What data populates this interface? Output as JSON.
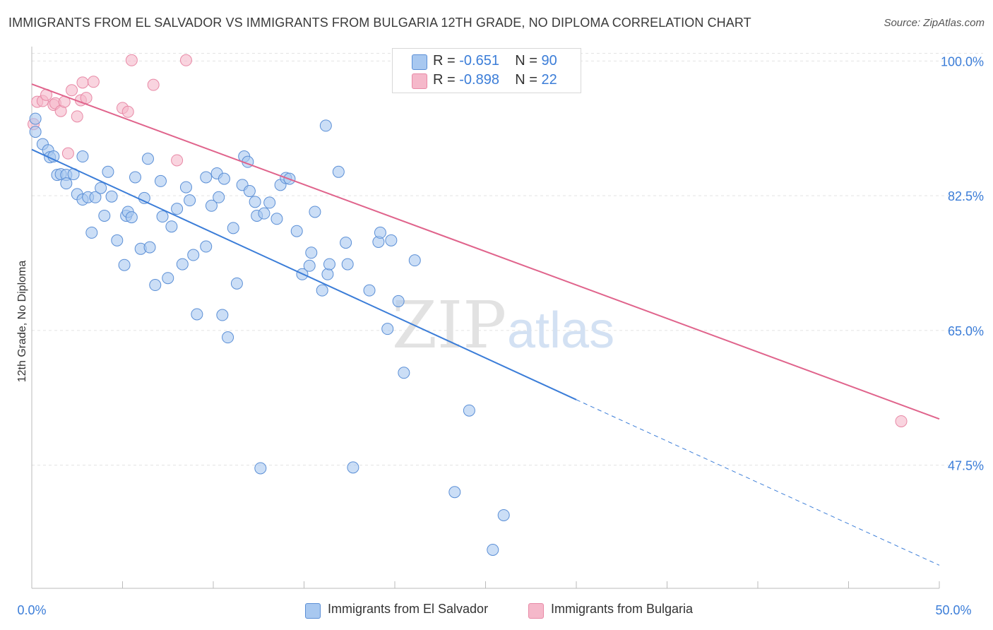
{
  "header": {
    "title": "IMMIGRANTS FROM EL SALVADOR VS IMMIGRANTS FROM BULGARIA 12TH GRADE, NO DIPLOMA CORRELATION CHART",
    "source": "Source: ZipAtlas.com"
  },
  "watermark": {
    "zip": "ZIP",
    "atlas": "atlas"
  },
  "legend": {
    "rows": [
      {
        "r_label": "R =",
        "r_value": "-0.651",
        "n_label": "N =",
        "n_value": "90",
        "color": "#a8c8f0"
      },
      {
        "r_label": "R =",
        "r_value": "-0.898",
        "n_label": "N =",
        "n_value": "22",
        "color": "#f5b8ca"
      }
    ]
  },
  "bottom_legend": {
    "el_salvador": "Immigrants from El Salvador",
    "bulgaria": "Immigrants from Bulgaria"
  },
  "colors": {
    "blue_fill": "#a8c8f0",
    "blue_stroke": "#5b8fd6",
    "blue_line": "#3b7dd8",
    "pink_fill": "#f5b8ca",
    "pink_stroke": "#e889a6",
    "pink_line": "#e0648c",
    "axis_label": "#3b7dd8",
    "grid": "#e3e3e3"
  },
  "chart_data": {
    "type": "scatter",
    "title": "IMMIGRANTS FROM EL SALVADOR VS IMMIGRANTS FROM BULGARIA 12TH GRADE, NO DIPLOMA CORRELATION CHART",
    "xlabel": "",
    "ylabel": "12th Grade, No Diploma",
    "xlim": [
      0,
      50
    ],
    "ylim": [
      31.5,
      101.5
    ],
    "x_tick_labels": [
      "0.0%",
      "50.0%"
    ],
    "y_ticks": [
      47.5,
      65.0,
      82.5,
      100.0
    ],
    "y_tick_labels": [
      "47.5%",
      "65.0%",
      "82.5%",
      "100.0%"
    ],
    "grid": true,
    "legend_position": "top-center",
    "series": [
      {
        "name": "Immigrants from El Salvador",
        "color": "#a8c8f0",
        "r": -0.651,
        "n": 90,
        "trend": {
          "x0": 0,
          "y0": 88.5,
          "x1": 30,
          "y1": 56.0,
          "dash_x1": 50,
          "dash_y1": 34.5
        },
        "points": [
          [
            0.2,
            92.5
          ],
          [
            0.2,
            90.8
          ],
          [
            0.6,
            89.2
          ],
          [
            0.9,
            88.4
          ],
          [
            1.0,
            87.5
          ],
          [
            1.2,
            87.6
          ],
          [
            1.4,
            85.2
          ],
          [
            1.6,
            85.3
          ],
          [
            1.9,
            85.2
          ],
          [
            2.3,
            85.3
          ],
          [
            1.9,
            84.1
          ],
          [
            2.5,
            82.7
          ],
          [
            2.8,
            82.0
          ],
          [
            3.1,
            82.3
          ],
          [
            3.5,
            82.3
          ],
          [
            2.8,
            87.6
          ],
          [
            3.8,
            83.5
          ],
          [
            4.2,
            85.6
          ],
          [
            4.4,
            82.4
          ],
          [
            4.0,
            79.9
          ],
          [
            3.3,
            77.7
          ],
          [
            4.7,
            76.7
          ],
          [
            5.2,
            79.9
          ],
          [
            5.3,
            80.4
          ],
          [
            5.5,
            79.7
          ],
          [
            5.7,
            84.9
          ],
          [
            6.2,
            82.2
          ],
          [
            6.4,
            87.3
          ],
          [
            6.0,
            75.6
          ],
          [
            6.5,
            75.8
          ],
          [
            5.1,
            73.5
          ],
          [
            6.8,
            70.9
          ],
          [
            7.2,
            79.8
          ],
          [
            7.1,
            84.4
          ],
          [
            7.5,
            71.8
          ],
          [
            7.7,
            78.5
          ],
          [
            8.0,
            80.8
          ],
          [
            8.3,
            73.6
          ],
          [
            8.5,
            83.6
          ],
          [
            8.7,
            81.9
          ],
          [
            8.9,
            74.8
          ],
          [
            9.6,
            75.9
          ],
          [
            9.1,
            67.1
          ],
          [
            9.6,
            84.9
          ],
          [
            9.9,
            81.2
          ],
          [
            10.2,
            85.4
          ],
          [
            10.3,
            82.3
          ],
          [
            10.6,
            84.7
          ],
          [
            10.5,
            67.0
          ],
          [
            10.8,
            64.1
          ],
          [
            11.1,
            78.3
          ],
          [
            11.3,
            71.1
          ],
          [
            11.6,
            83.9
          ],
          [
            11.7,
            87.6
          ],
          [
            11.9,
            86.9
          ],
          [
            12.0,
            83.1
          ],
          [
            12.3,
            81.7
          ],
          [
            12.4,
            79.9
          ],
          [
            12.6,
            47.1
          ],
          [
            12.8,
            80.2
          ],
          [
            13.1,
            81.6
          ],
          [
            13.5,
            79.5
          ],
          [
            13.7,
            83.9
          ],
          [
            14.0,
            84.8
          ],
          [
            14.2,
            84.7
          ],
          [
            14.6,
            77.9
          ],
          [
            14.9,
            72.3
          ],
          [
            15.3,
            73.4
          ],
          [
            15.4,
            75.1
          ],
          [
            15.6,
            80.4
          ],
          [
            16.2,
            91.6
          ],
          [
            16.0,
            70.2
          ],
          [
            16.3,
            72.3
          ],
          [
            16.4,
            73.6
          ],
          [
            16.9,
            85.6
          ],
          [
            17.3,
            76.4
          ],
          [
            17.4,
            73.6
          ],
          [
            17.7,
            47.2
          ],
          [
            18.6,
            70.2
          ],
          [
            19.1,
            76.5
          ],
          [
            19.2,
            77.7
          ],
          [
            19.8,
            76.7
          ],
          [
            19.6,
            65.2
          ],
          [
            20.2,
            68.8
          ],
          [
            20.5,
            59.5
          ],
          [
            21.1,
            74.1
          ],
          [
            24.1,
            54.6
          ],
          [
            23.3,
            44.0
          ],
          [
            26.0,
            41.0
          ],
          [
            25.4,
            36.5
          ]
        ]
      },
      {
        "name": "Immigrants from Bulgaria",
        "color": "#f5b8ca",
        "r": -0.898,
        "n": 22,
        "trend": {
          "x0": 0,
          "y0": 97.0,
          "x1": 50,
          "y1": 53.5
        },
        "points": [
          [
            0.1,
            91.8
          ],
          [
            0.3,
            94.7
          ],
          [
            0.6,
            94.8
          ],
          [
            0.8,
            95.6
          ],
          [
            1.2,
            94.3
          ],
          [
            1.3,
            94.5
          ],
          [
            1.6,
            93.5
          ],
          [
            1.8,
            94.7
          ],
          [
            2.0,
            88.0
          ],
          [
            2.2,
            96.2
          ],
          [
            2.5,
            92.8
          ],
          [
            2.7,
            94.9
          ],
          [
            2.8,
            97.2
          ],
          [
            3.0,
            95.2
          ],
          [
            3.4,
            97.3
          ],
          [
            5.0,
            93.9
          ],
          [
            5.3,
            93.4
          ],
          [
            5.5,
            100.1
          ],
          [
            6.7,
            96.9
          ],
          [
            8.0,
            87.1
          ],
          [
            8.5,
            100.1
          ],
          [
            47.9,
            53.2
          ]
        ]
      }
    ]
  }
}
